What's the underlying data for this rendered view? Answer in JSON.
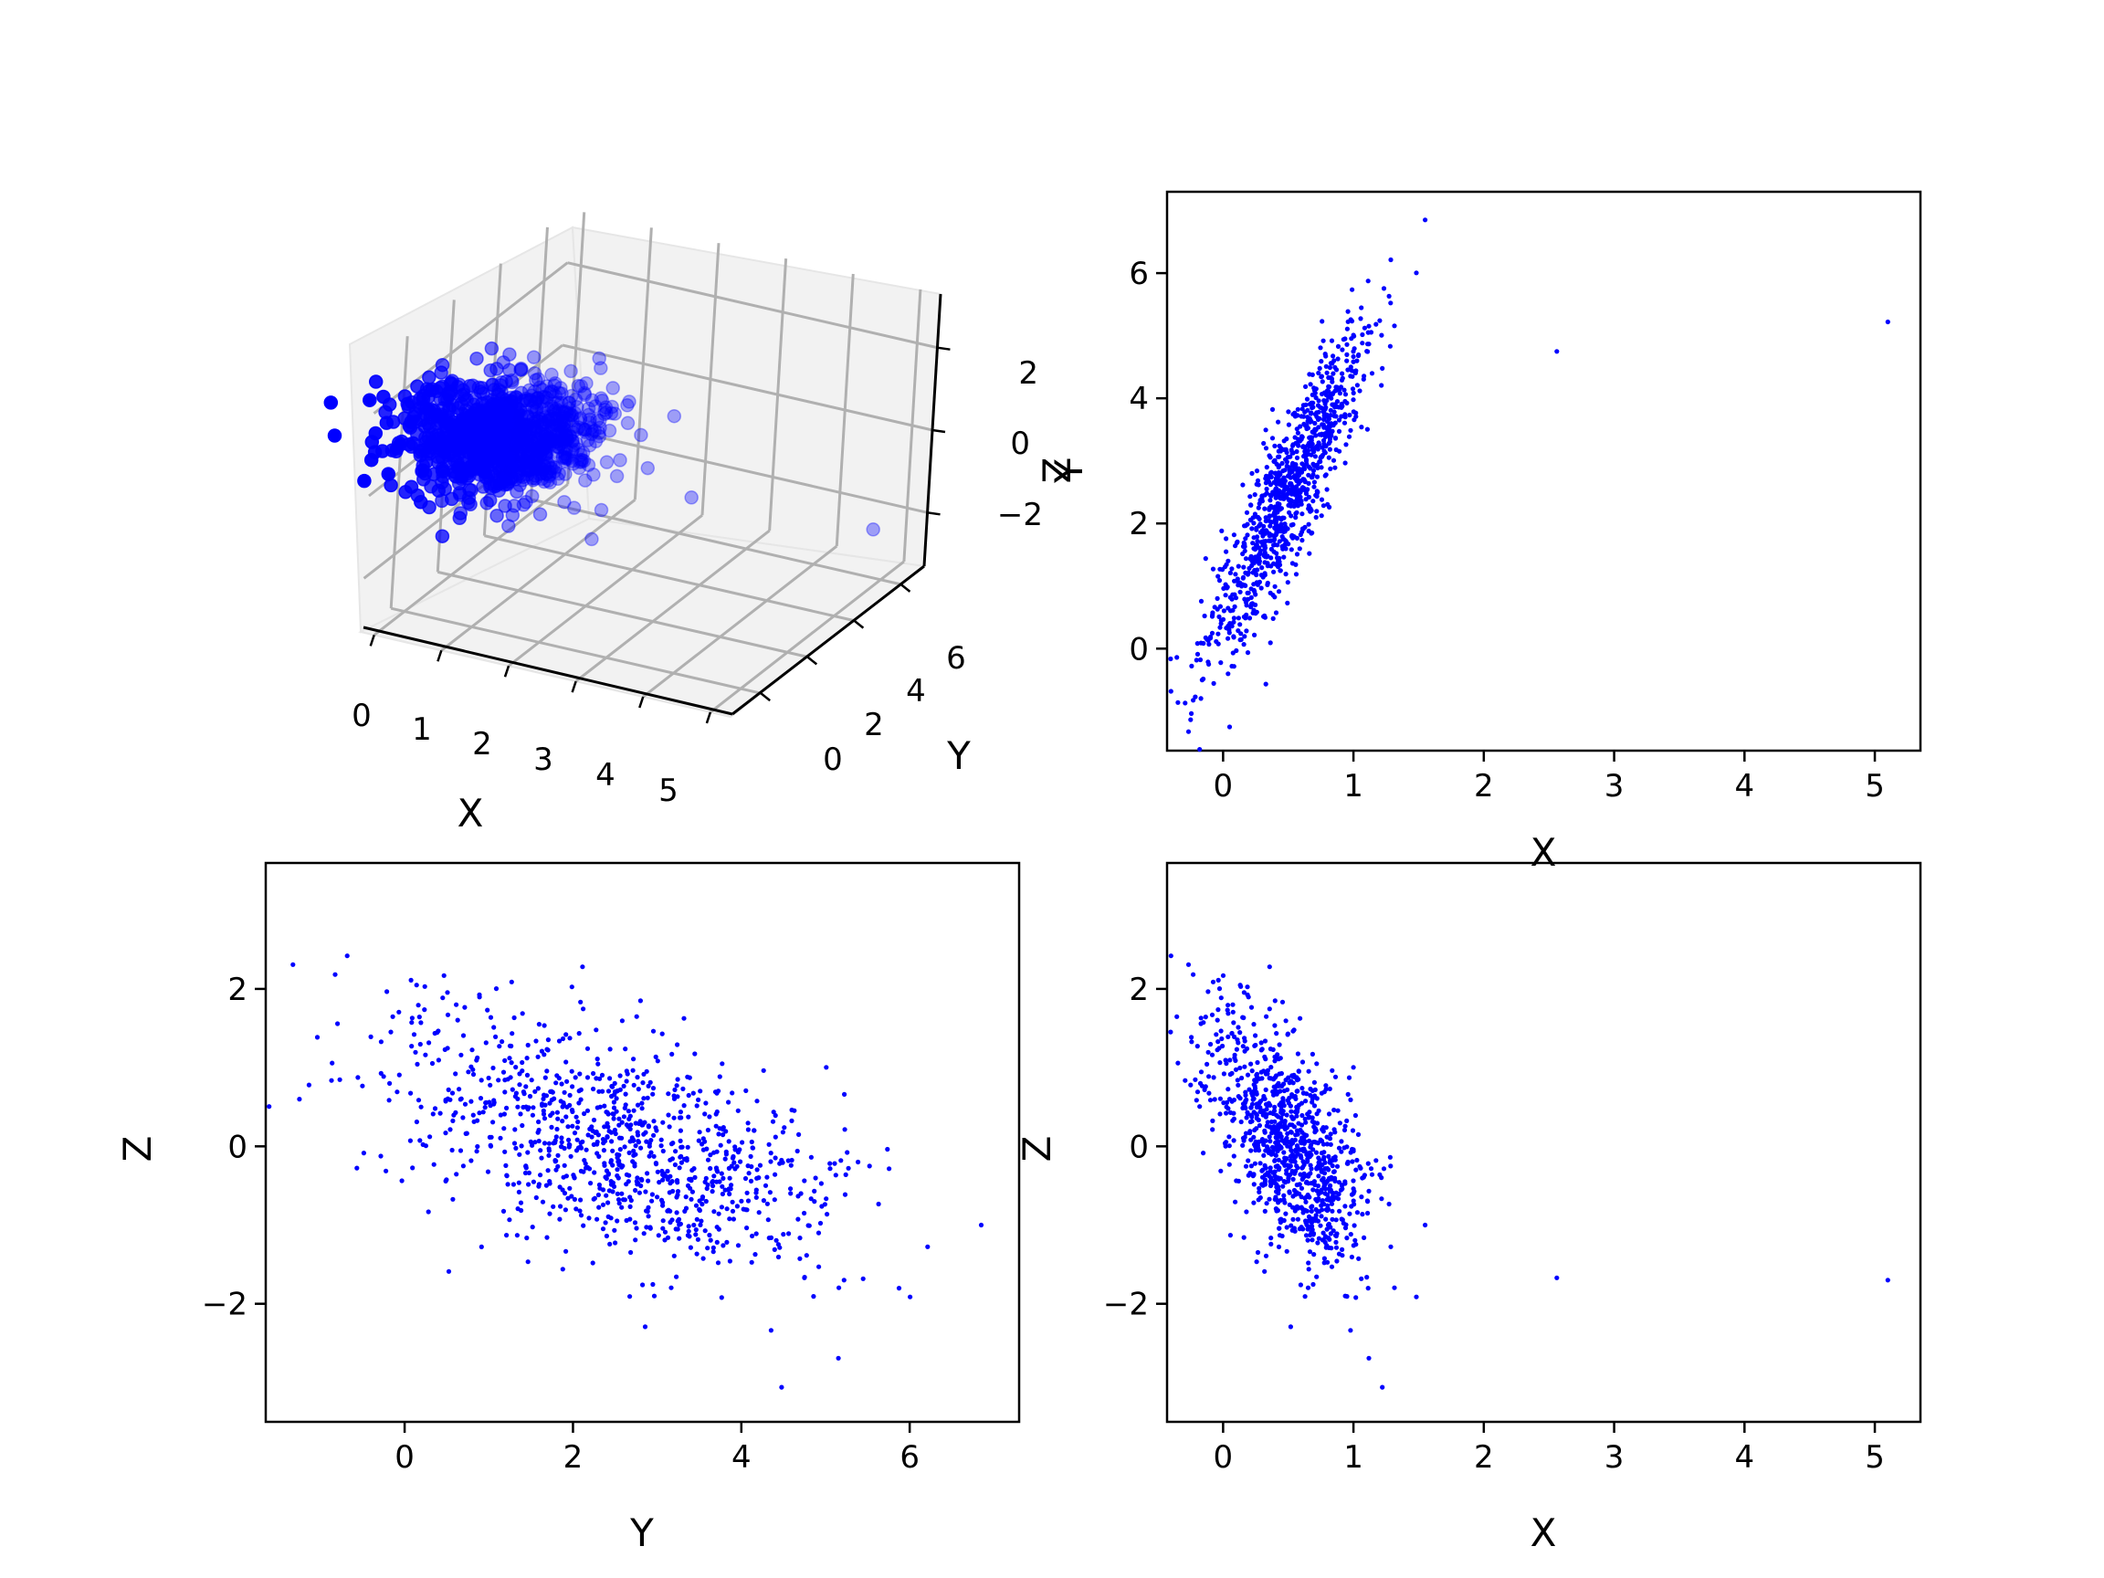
{
  "chart_data": [
    {
      "type": "scatter",
      "name": "3d-scatter",
      "projection": "3d",
      "xlabel": "X",
      "ylabel": "Y",
      "zlabel": "Z",
      "xticks": [
        "0",
        "1",
        "2",
        "3",
        "4",
        "5"
      ],
      "yticks": [
        "0",
        "2",
        "4",
        "6"
      ],
      "zticks": [
        "−2",
        "0",
        "2"
      ],
      "xlim": [
        -0.2,
        5.3
      ],
      "ylim": [
        -1.3,
        7.0
      ],
      "zlim": [
        -3.3,
        3.3
      ],
      "color": "#0000ff",
      "grid": true
    },
    {
      "type": "scatter",
      "name": "x-vs-y",
      "xlabel": "X",
      "ylabel": "Y",
      "xticks": [
        "0",
        "1",
        "2",
        "3",
        "4",
        "5"
      ],
      "yticks": [
        "0",
        "2",
        "4",
        "6"
      ],
      "xlim": [
        -0.43,
        5.35
      ],
      "ylim": [
        -1.63,
        7.3
      ],
      "color": "#0000ff",
      "outliers": [
        [
          2.56,
          4.75
        ],
        [
          5.1,
          5.22
        ],
        [
          1.55,
          6.85
        ]
      ]
    },
    {
      "type": "scatter",
      "name": "y-vs-z",
      "xlabel": "Y",
      "ylabel": "Z",
      "xticks": [
        "0",
        "2",
        "4",
        "6"
      ],
      "yticks": [
        "−2",
        "0",
        "2"
      ],
      "xlim": [
        -1.65,
        7.3
      ],
      "ylim": [
        -3.5,
        3.6
      ],
      "color": "#0000ff",
      "outliers": [
        [
          6.85,
          -1.0
        ],
        [
          -1.25,
          0.6
        ]
      ]
    },
    {
      "type": "scatter",
      "name": "x-vs-z",
      "xlabel": "X",
      "ylabel": "Z",
      "xticks": [
        "0",
        "1",
        "2",
        "3",
        "4",
        "5"
      ],
      "yticks": [
        "−2",
        "0",
        "2"
      ],
      "xlim": [
        -0.43,
        5.35
      ],
      "ylim": [
        -3.5,
        3.6
      ],
      "color": "#0000ff",
      "outliers": [
        [
          2.56,
          -1.67
        ],
        [
          5.1,
          -1.7
        ]
      ]
    }
  ],
  "sample": {
    "count": 1000,
    "x_mean": 0.5,
    "x_sd": 0.3,
    "y_slope": 3.8,
    "y_intercept": 0.6,
    "y_noise_sd": 0.6,
    "z_slope_x": -1.6,
    "z_intercept": 0.8,
    "z_noise_sd": 0.65
  }
}
